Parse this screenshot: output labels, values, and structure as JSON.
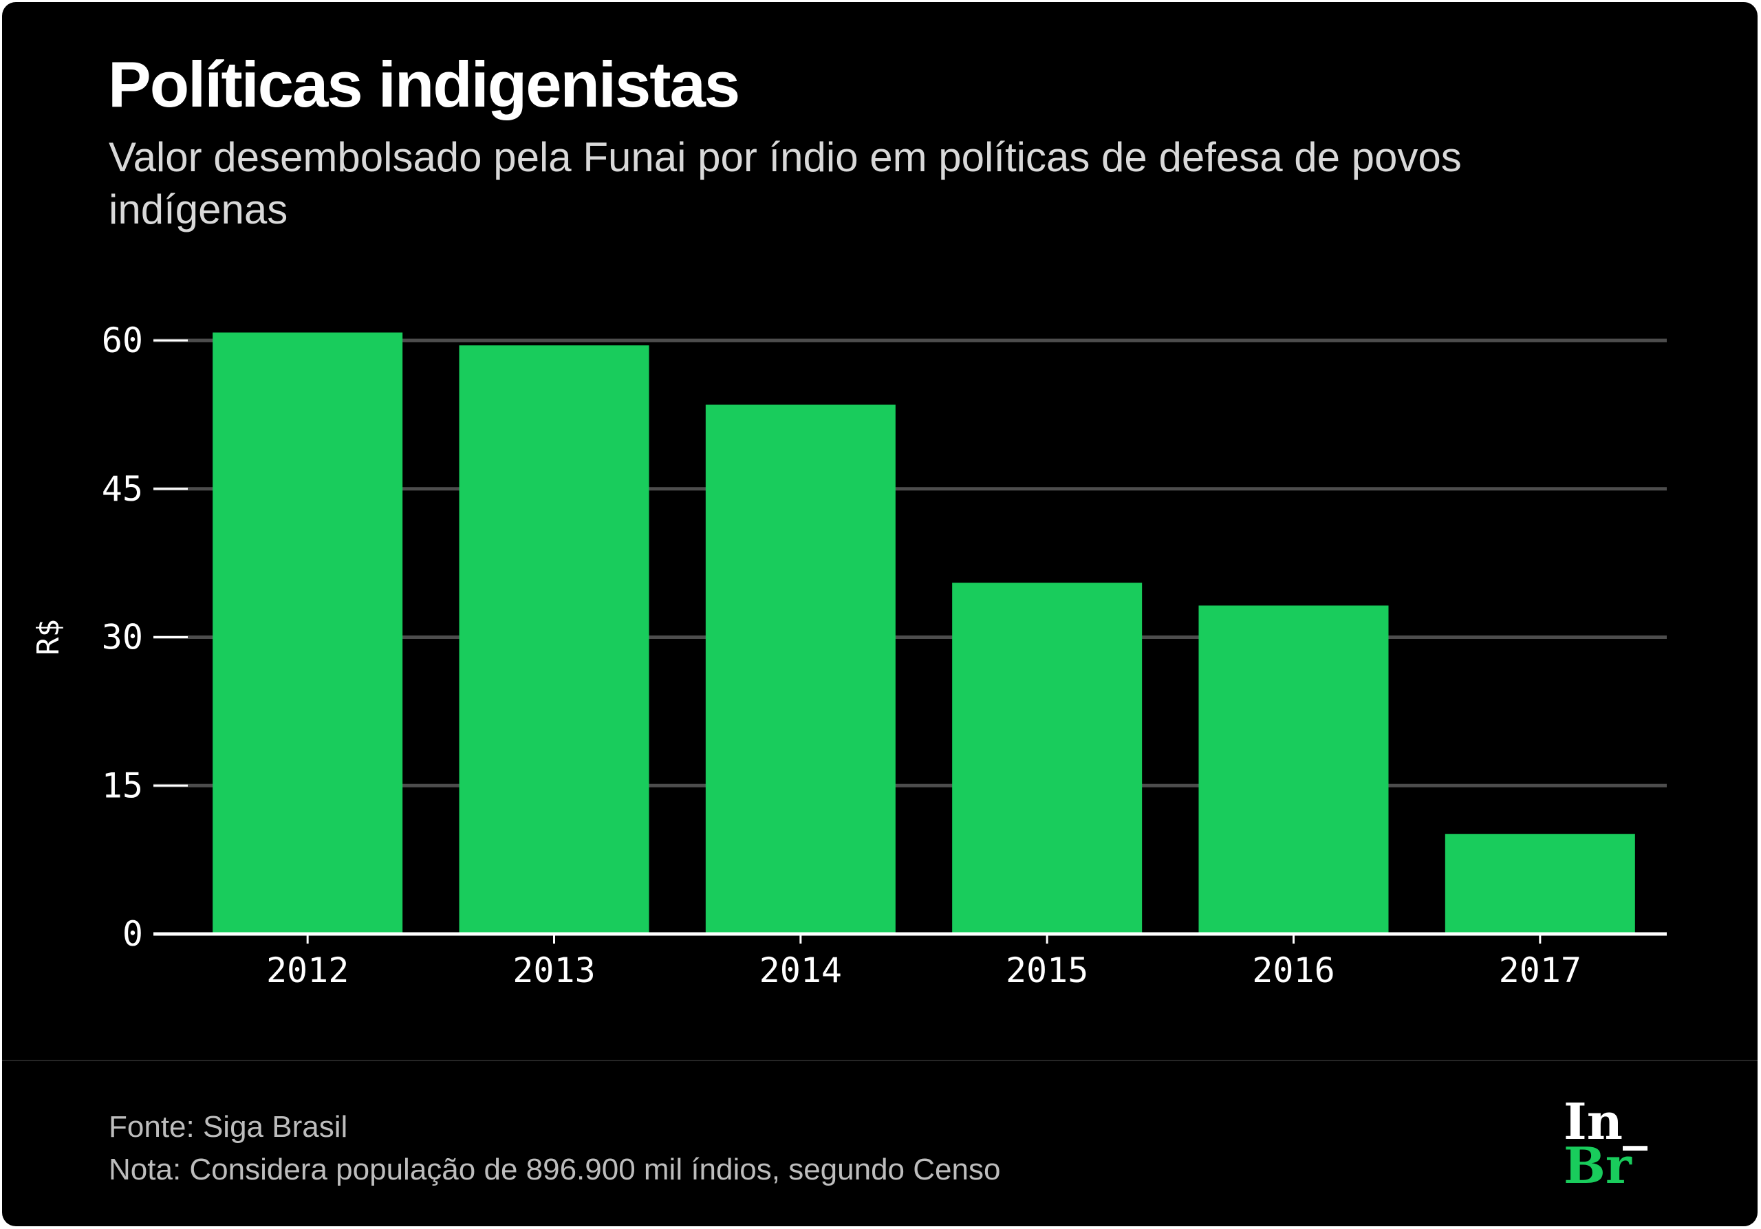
{
  "header": {
    "title": "Políticas indigenistas",
    "subtitle": "Valor desembolsado pela Funai por índio em políticas de defesa de povos indígenas"
  },
  "footer": {
    "source": "Fonte: Siga Brasil",
    "note": "Nota: Considera população de 896.900 mil índios, segundo Censo",
    "logo_line1": "In_",
    "logo_line2": "Br"
  },
  "colors": {
    "background": "#000000",
    "bar": "#19cc5c",
    "grid": "#4d4d4d",
    "axis": "#ffffff"
  },
  "chart_data": {
    "type": "bar",
    "title": "Políticas indigenistas",
    "subtitle": "Valor desembolsado pela Funai por índio em políticas de defesa de povos indígenas",
    "categories": [
      "2012",
      "2013",
      "2014",
      "2015",
      "2016",
      "2017"
    ],
    "values": [
      60.8,
      59.5,
      53.5,
      35.5,
      33.2,
      10.1
    ],
    "xlabel": "",
    "ylabel": "R$",
    "ylim": [
      0,
      60
    ],
    "yticks": [
      0,
      15,
      30,
      45,
      60
    ],
    "grid": true,
    "legend": "none"
  }
}
